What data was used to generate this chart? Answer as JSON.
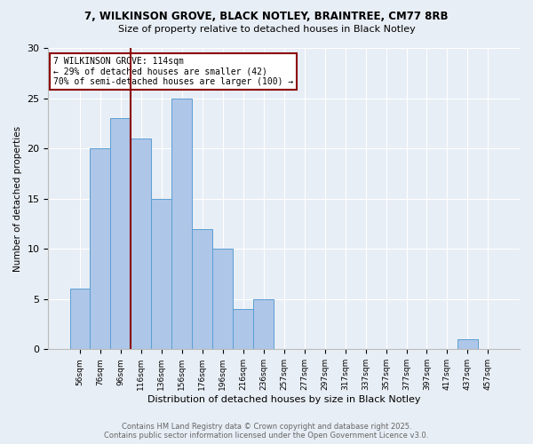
{
  "title1": "7, WILKINSON GROVE, BLACK NOTLEY, BRAINTREE, CM77 8RB",
  "title2": "Size of property relative to detached houses in Black Notley",
  "xlabel": "Distribution of detached houses by size in Black Notley",
  "ylabel": "Number of detached properties",
  "bar_labels": [
    "56sqm",
    "76sqm",
    "96sqm",
    "116sqm",
    "136sqm",
    "156sqm",
    "176sqm",
    "196sqm",
    "216sqm",
    "236sqm",
    "257sqm",
    "277sqm",
    "297sqm",
    "317sqm",
    "337sqm",
    "357sqm",
    "377sqm",
    "397sqm",
    "417sqm",
    "437sqm",
    "457sqm"
  ],
  "bar_values": [
    6,
    20,
    23,
    21,
    15,
    25,
    12,
    10,
    4,
    5,
    0,
    0,
    0,
    0,
    0,
    0,
    0,
    0,
    0,
    1,
    0
  ],
  "bar_color": "#aec6e8",
  "bar_edge_color": "#5a9fd4",
  "vline_color": "#8b0000",
  "annotation_text": "7 WILKINSON GROVE: 114sqm\n← 29% of detached houses are smaller (42)\n70% of semi-detached houses are larger (100) →",
  "annotation_box_color": "white",
  "annotation_box_edge": "#8b0000",
  "ylim": [
    0,
    30
  ],
  "yticks": [
    0,
    5,
    10,
    15,
    20,
    25,
    30
  ],
  "footer1": "Contains HM Land Registry data © Crown copyright and database right 2025.",
  "footer2": "Contains public sector information licensed under the Open Government Licence v3.0.",
  "bg_color": "#e8eef5"
}
